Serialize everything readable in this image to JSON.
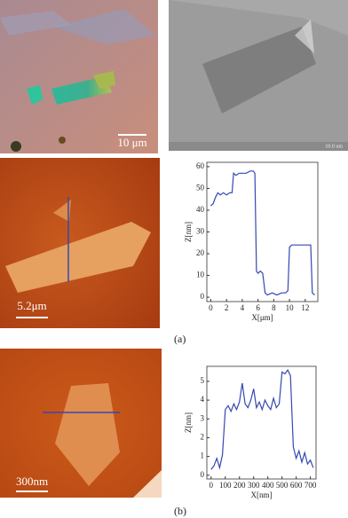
{
  "figure": {
    "panel_a": {
      "optical_scale": "10 μm",
      "sem_scale": "10.0 um",
      "afm_scale": "5.2μm",
      "label": "(a)"
    },
    "panel_b": {
      "afm_scale": "300nm",
      "label": "(b)"
    }
  },
  "chart_data": [
    {
      "type": "line",
      "xlabel": "X[μm]",
      "ylabel": "Z[nm]",
      "xlim": [
        -0.5,
        13.6
      ],
      "ylim": [
        -2,
        62
      ],
      "xticks": [
        0,
        2,
        4,
        6,
        8,
        10,
        12
      ],
      "yticks": [
        0,
        10,
        20,
        30,
        40,
        50,
        60
      ],
      "x": [
        0,
        0.3,
        0.6,
        0.9,
        1.2,
        1.6,
        2.0,
        2.4,
        2.7,
        2.9,
        3.2,
        3.6,
        4.0,
        4.5,
        5.0,
        5.4,
        5.6,
        5.8,
        6.0,
        6.3,
        6.6,
        6.9,
        7.2,
        7.8,
        8.4,
        9.0,
        9.5,
        9.8,
        10.0,
        10.3,
        10.8,
        11.4,
        12.0,
        12.5,
        12.7,
        12.9,
        13.2
      ],
      "series": [
        {
          "color": "#3548b0",
          "values": [
            42,
            43,
            46,
            48,
            47,
            48,
            47,
            48,
            48,
            57,
            56,
            57,
            57,
            57,
            58,
            58,
            57,
            12,
            11,
            12,
            11,
            2,
            1,
            2,
            1,
            2,
            2,
            3,
            23,
            24,
            24,
            24,
            24,
            24,
            24,
            2,
            1
          ]
        }
      ]
    },
    {
      "type": "line",
      "xlabel": "X[nm]",
      "ylabel": "Z[nm]",
      "xlim": [
        -30,
        740
      ],
      "ylim": [
        -0.2,
        5.8
      ],
      "xticks": [
        0,
        100,
        200,
        300,
        400,
        500,
        600,
        700
      ],
      "yticks": [
        0,
        1,
        2,
        3,
        4,
        5
      ],
      "x": [
        0,
        20,
        40,
        60,
        80,
        100,
        120,
        140,
        160,
        180,
        200,
        220,
        240,
        260,
        280,
        300,
        320,
        340,
        360,
        380,
        400,
        420,
        440,
        460,
        480,
        500,
        520,
        540,
        560,
        580,
        600,
        620,
        640,
        660,
        680,
        700,
        720
      ],
      "series": [
        {
          "color": "#3548b0",
          "values": [
            0.3,
            0.5,
            0.9,
            0.4,
            1.1,
            3.5,
            3.7,
            3.4,
            3.8,
            3.5,
            3.9,
            4.9,
            3.8,
            3.6,
            4.0,
            4.6,
            3.6,
            3.9,
            3.5,
            4.0,
            3.7,
            3.5,
            4.1,
            3.6,
            3.8,
            5.5,
            5.4,
            5.6,
            5.3,
            1.5,
            0.9,
            1.3,
            0.7,
            1.2,
            0.6,
            0.8,
            0.4
          ]
        }
      ]
    }
  ]
}
